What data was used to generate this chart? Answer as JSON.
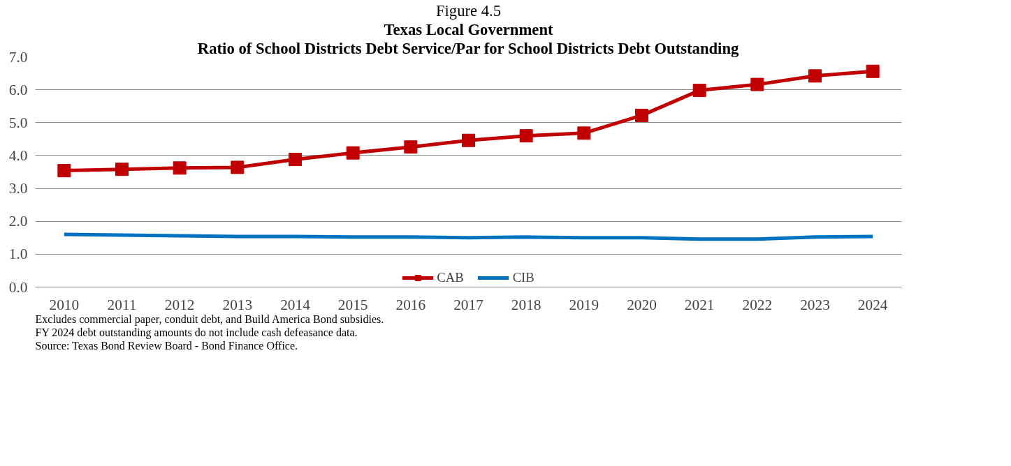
{
  "chart_data": {
    "type": "line",
    "title": "Texas Local Government",
    "subtitle": "Ratio of School Districts Debt Service/Par for School Districts Debt Outstanding",
    "categories": [
      "2010",
      "2011",
      "2012",
      "2013",
      "2014",
      "2015",
      "2016",
      "2017",
      "2018",
      "2019",
      "2020",
      "2021",
      "2022",
      "2023",
      "2024"
    ],
    "series": [
      {
        "name": "CAB",
        "color": "#c00000",
        "marker": "square",
        "values": [
          3.54,
          3.58,
          3.62,
          3.64,
          3.88,
          4.08,
          4.26,
          4.46,
          4.6,
          4.68,
          5.22,
          5.98,
          6.16,
          6.42,
          6.56
        ]
      },
      {
        "name": "CIB",
        "color": "#0070c0",
        "marker": "none",
        "values": [
          1.6,
          1.58,
          1.56,
          1.54,
          1.54,
          1.52,
          1.52,
          1.5,
          1.52,
          1.5,
          1.5,
          1.46,
          1.46,
          1.52,
          1.54
        ]
      }
    ],
    "ylim": [
      0,
      7
    ],
    "yticks": [
      {
        "value": 0,
        "label": "0.0"
      },
      {
        "value": 1,
        "label": "1.0"
      },
      {
        "value": 2,
        "label": "2.0"
      },
      {
        "value": 3,
        "label": "3.0"
      },
      {
        "value": 4,
        "label": "4.0"
      },
      {
        "value": 5,
        "label": "5.0"
      },
      {
        "value": 6,
        "label": "6.0"
      },
      {
        "value": 7,
        "label": "7.0"
      }
    ],
    "grid": "y",
    "legend": "bottom",
    "annotations": [
      "Figure 4.5",
      "Excludes commercial paper, conduit debt, and Build America Bond subsidies.",
      "FY 2024 debt outstanding amounts do not include cash defeasance data.",
      "Source: Texas Bond Review Board - Bond Finance Office."
    ]
  }
}
